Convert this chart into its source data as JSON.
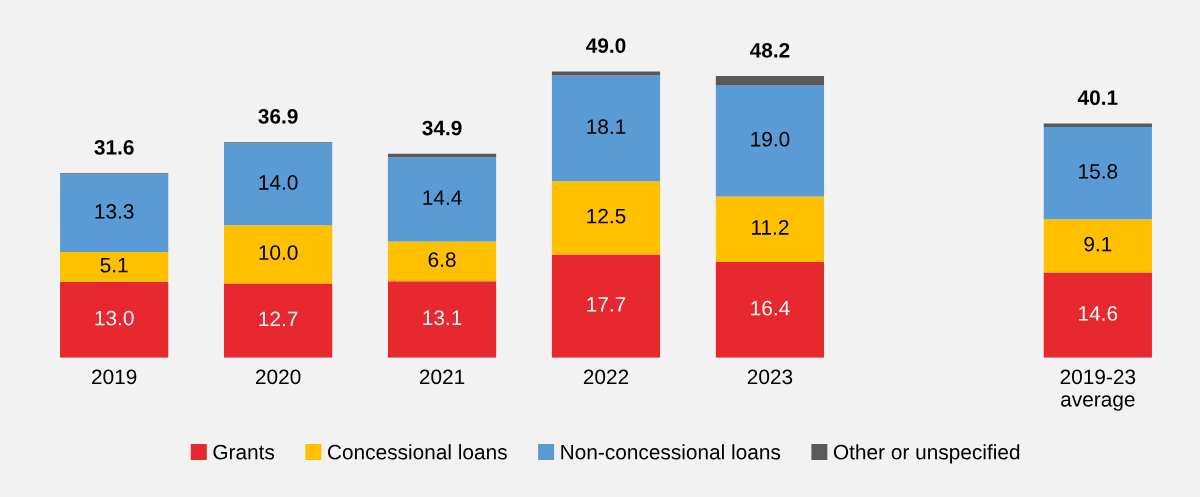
{
  "chart_data": {
    "type": "bar",
    "stacked": true,
    "categories": [
      "2019",
      "2020",
      "2021",
      "2022",
      "2023",
      null,
      "2019-23\naverage"
    ],
    "series": [
      {
        "name": "Grants",
        "color": "#e8282f",
        "values": [
          13.0,
          12.7,
          13.1,
          17.7,
          16.4,
          null,
          14.6
        ],
        "value_labels": [
          "13.0",
          "12.7",
          "13.1",
          "17.7",
          "16.4",
          null,
          "14.6"
        ]
      },
      {
        "name": "Concessional loans",
        "color": "#ffc000",
        "values": [
          5.1,
          10.0,
          6.8,
          12.5,
          11.2,
          null,
          9.1
        ],
        "value_labels": [
          "5.1",
          "10.0",
          "6.8",
          "12.5",
          "11.2",
          null,
          "9.1"
        ]
      },
      {
        "name": "Non-concessional loans",
        "color": "#5b9bd5",
        "values": [
          13.3,
          14.0,
          14.4,
          18.1,
          19.0,
          null,
          15.8
        ],
        "value_labels": [
          "13.3",
          "14.0",
          "14.4",
          "18.1",
          "19.0",
          null,
          "15.8"
        ]
      },
      {
        "name": "Other or unspecified",
        "color": "#595959",
        "values": [
          0.2,
          0.2,
          0.6,
          0.7,
          1.6,
          null,
          0.6
        ]
      }
    ],
    "totals": [
      "31.6",
      "36.9",
      "34.9",
      "49.0",
      "48.2",
      null,
      "40.1"
    ],
    "legend": "bottom",
    "grid": false
  }
}
